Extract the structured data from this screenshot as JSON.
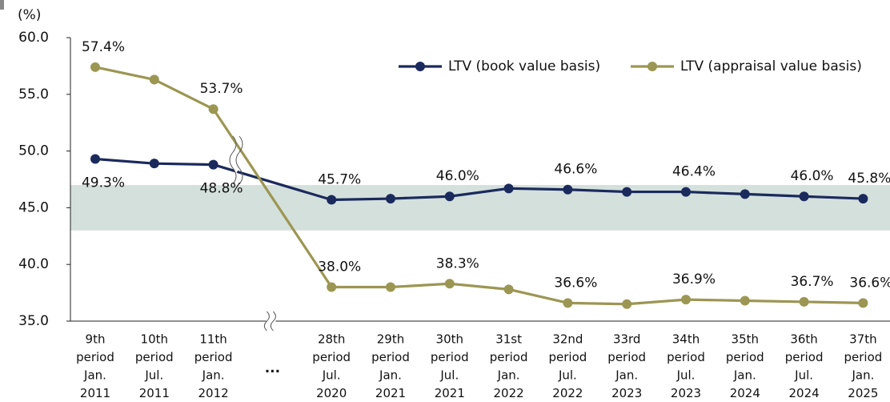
{
  "chart_data": {
    "type": "line",
    "ylabel": "(%)",
    "categories": [
      [
        "9th",
        "period",
        "Jan.",
        "2011"
      ],
      [
        "10th",
        "period",
        "Jul.",
        "2011"
      ],
      [
        "11th",
        "period",
        "Jan.",
        "2012"
      ],
      [
        "28th",
        "period",
        "Jul.",
        "2020"
      ],
      [
        "29th",
        "period",
        "Jan.",
        "2021"
      ],
      [
        "30th",
        "period",
        "Jul.",
        "2021"
      ],
      [
        "31st",
        "period",
        "Jan.",
        "2022"
      ],
      [
        "32nd",
        "period",
        "Jul.",
        "2022"
      ],
      [
        "33rd",
        "period",
        "Jan.",
        "2023"
      ],
      [
        "34th",
        "period",
        "Jul.",
        "2023"
      ],
      [
        "35th",
        "period",
        "Jan.",
        "2024"
      ],
      [
        "36th",
        "period",
        "Jul.",
        "2024"
      ],
      [
        "37th",
        "period",
        "Jan.",
        "2025"
      ]
    ],
    "break_label": "...",
    "series": [
      {
        "name": "LTV (book value basis)",
        "color": "#1b2a5c",
        "values": [
          49.3,
          48.9,
          48.8,
          45.7,
          45.8,
          46.0,
          46.7,
          46.6,
          46.4,
          46.4,
          46.2,
          46.0,
          45.8
        ],
        "value_labels": [
          "49.3%",
          null,
          "48.8%",
          "45.7%",
          null,
          "46.0%",
          null,
          "46.6%",
          null,
          "46.4%",
          null,
          "46.0%",
          "45.8%"
        ]
      },
      {
        "name": "LTV (appraisal value basis)",
        "color": "#9c9653",
        "values": [
          57.4,
          56.3,
          53.7,
          38.0,
          38.0,
          38.3,
          37.8,
          36.6,
          36.5,
          36.9,
          36.8,
          36.7,
          36.6
        ],
        "value_labels": [
          "57.4%",
          null,
          "53.7%",
          "38.0%",
          null,
          "38.3%",
          null,
          "36.6%",
          null,
          "36.9%",
          null,
          "36.7%",
          "36.6%"
        ]
      }
    ],
    "target_range": [
      43,
      47
    ],
    "target_color": "#d4e0dc",
    "ylim": [
      35,
      60
    ],
    "yticks": [
      {
        "value": 35,
        "label": "35.0"
      },
      {
        "value": 40,
        "label": "40.0"
      },
      {
        "value": 45,
        "label": "45.0"
      },
      {
        "value": 50,
        "label": "50.0"
      },
      {
        "value": 55,
        "label": "55.0"
      },
      {
        "value": 60,
        "label": "60.0"
      }
    ],
    "legend": "upper right"
  }
}
